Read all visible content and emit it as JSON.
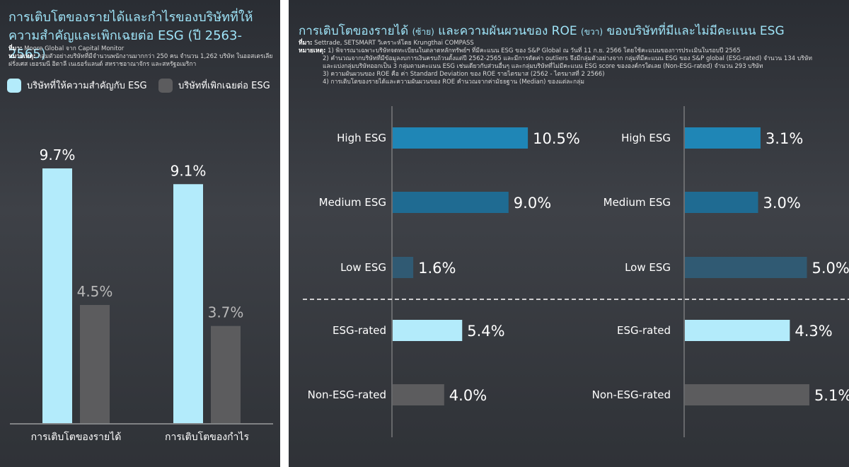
{
  "left": {
    "title": "การเติบโตของรายได้และกำไรของบริษัทที่ให้ความสำคัญและเพิกเฉยต่อ ESG (ปี 2563-2565)",
    "source_label": "ที่มา:",
    "source_text": "Moore Global จาก Capital Monitor",
    "note_label": "หมายเหตุ:",
    "note_text": "กลุ่มตัวอย่างบริษัทที่มีจำนวนพนักงานมากกว่า 250 คน จำนวน 1,262 บริษัท ในออสเตรเลีย ฝรั่งเศส เยอรมนี อิตาลี เนเธอร์แลนด์ สหราชอาณาจักร และสหรัฐอเมริกา"
  },
  "right": {
    "title_main": "การเติบโตของรายได้",
    "title_left_tag": "(ซ้าย)",
    "title_mid": "และความผันผวนของ ROE",
    "title_right_tag": "(ขวา)",
    "title_end": "ของบริษัทที่มีและไม่มีคะแนน ESG",
    "source_label": "ที่มา:",
    "source_text": "Settrade, SETSMART วิเคราะห์โดย Krungthai COMPASS",
    "note_label": "หมายเหตุ:",
    "notes": [
      "1) พิจารณาเฉพาะบริษัทจดทะเบียนในตลาดหลักทรัพย์ฯ ที่มีคะแนน ESG ของ S&P Global ณ วันที่ 11 ก.ย. 2566 โดยใช้คะแนนของการประเมินในรอบปี 2565",
      "2) คำนวณจากบริษัทที่มีข้อมูลงบการเงินครบถ้วนตั้งแต่ปี 2562-2565 และมีการตัดค่า outliers จึงมีกลุ่มตัวอย่างจาก กลุ่มที่มีคะแนน ESG ของ S&P global (ESG-rated) จำนวน 134 บริษัท",
      "และแบ่งกลุ่มบริษัทออกเป็น 3 กลุ่มตามคะแนน ESG เช่นเดียวกับส่วนอื่นๆ และกลุ่มบริษัทที่ไม่มีคะแนน ESG score ขององค์กรใดเลย (Non-ESG-rated) จำนวน 293 บริษัท",
      "3) ความผันผวนของ ROE คือ ค่า Standard Deviation ของ ROE รายไตรมาส (2562 - ไตรมาสที่ 2 2566)",
      "4) การเติบโตของรายได้และความผันผวนของ ROE คำนวณจากค่ามัธยฐาน (Median) ของแต่ละกลุ่ม"
    ]
  },
  "colors": {
    "panel_bg": "#34373c",
    "title": "#9ee3f7",
    "esg_light": "#b3ebfb",
    "neglect_gray": "#5c5c5e",
    "high_esg": "#1f86b6",
    "medium_esg": "#1f6b92",
    "low_esg": "#305a73",
    "axis": "#cfcfcf"
  },
  "chart_data": [
    {
      "type": "bar",
      "categories": [
        "การเติบโตของรายได้",
        "การเติบโตของกำไร"
      ],
      "series": [
        {
          "name": "บริษัทที่ให้ความสำคัญกับ ESG",
          "values": [
            9.7,
            9.1
          ],
          "labels": [
            "9.7%",
            "9.1%"
          ]
        },
        {
          "name": "บริษัทที่เพิกเฉยต่อ ESG",
          "values": [
            4.5,
            3.7
          ],
          "labels": [
            "4.5%",
            "3.7%"
          ]
        }
      ],
      "legend": "top",
      "grid": false
    },
    {
      "type": "bar",
      "orientation": "horizontal",
      "categories": [
        "High ESG",
        "Medium ESG",
        "Low ESG",
        "ESG-rated",
        "Non-ESG-rated"
      ],
      "values": [
        10.5,
        9.0,
        1.6,
        5.4,
        4.0
      ],
      "labels": [
        "10.5%",
        "9.0%",
        "1.6%",
        "5.4%",
        "4.0%"
      ],
      "grid": false
    },
    {
      "type": "bar",
      "orientation": "horizontal",
      "categories": [
        "High ESG",
        "Medium ESG",
        "Low ESG",
        "ESG-rated",
        "Non-ESG-rated"
      ],
      "values": [
        3.1,
        3.0,
        5.0,
        4.3,
        5.1
      ],
      "labels": [
        "3.1%",
        "3.0%",
        "5.0%",
        "4.3%",
        "5.1%"
      ],
      "grid": false
    }
  ]
}
